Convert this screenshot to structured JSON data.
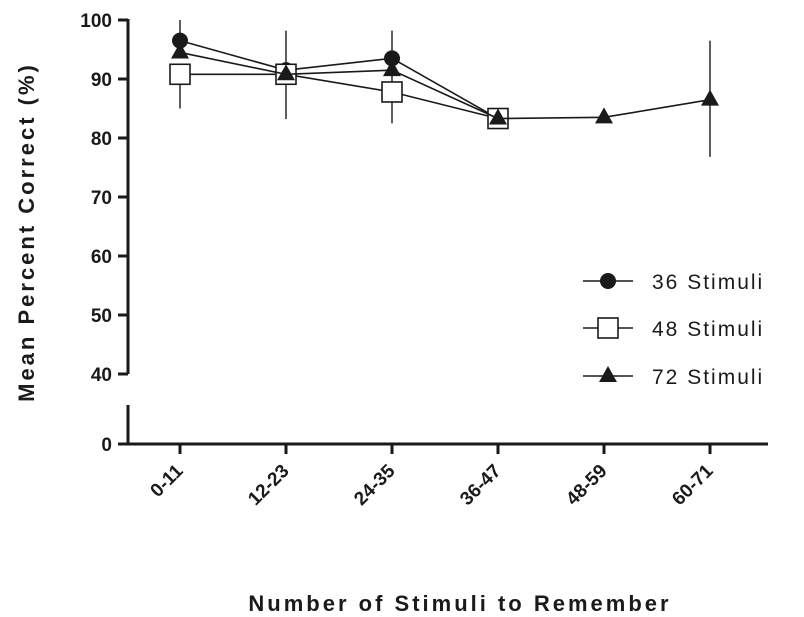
{
  "chart_data": {
    "type": "line",
    "title": "",
    "xlabel": "Number of Stimuli to Remember",
    "ylabel": "Mean Percent Correct (%)",
    "categories": [
      "0-11",
      "12-23",
      "24-35",
      "36-47",
      "48-59",
      "60-71"
    ],
    "yticks_upper": [
      40,
      50,
      60,
      70,
      80,
      90,
      100
    ],
    "yticks_lower": [
      0
    ],
    "ylim_upper": [
      40,
      100
    ],
    "broken_axis": true,
    "grid": false,
    "legend_position": "right",
    "series": [
      {
        "name": "36 Stimuli",
        "marker": "filled-circle",
        "values": [
          96.5,
          91.5,
          93.5,
          83.3,
          null,
          null
        ],
        "err_low": [
          null,
          null,
          82.5,
          null,
          null,
          null
        ],
        "err_high": [
          100,
          null,
          98.2,
          null,
          null,
          null
        ]
      },
      {
        "name": "48 Stimuli",
        "marker": "open-square",
        "values": [
          90.8,
          90.8,
          87.8,
          83.3,
          null,
          null
        ],
        "err_low": [
          85.0,
          83.2,
          null,
          null,
          null,
          null
        ],
        "err_high": [
          null,
          98.2,
          null,
          null,
          null,
          null
        ]
      },
      {
        "name": "72 Stimuli",
        "marker": "filled-triangle",
        "values": [
          94.5,
          90.8,
          91.5,
          83.3,
          83.5,
          86.5
        ],
        "err_low": [
          null,
          null,
          null,
          null,
          null,
          76.8
        ],
        "err_high": [
          null,
          null,
          null,
          null,
          null,
          96.5
        ]
      }
    ]
  }
}
